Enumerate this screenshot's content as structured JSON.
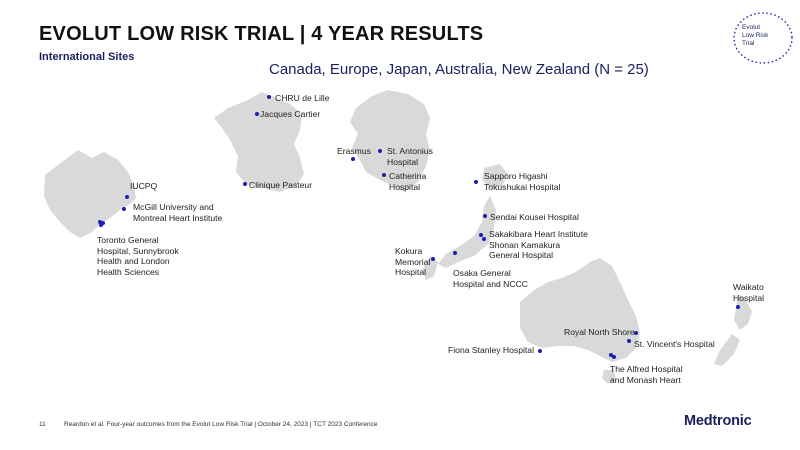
{
  "header": {
    "title": "EVOLUT LOW RISK TRIAL | 4 YEAR RESULTS",
    "subtitle": "International Sites",
    "heading": "Canada, Europe, Japan, Australia, New Zealand (N = 25)"
  },
  "badge": {
    "line1": "Evolut",
    "line2": "Low Risk",
    "line3": "Trial"
  },
  "sites": {
    "iucpq": "IUCPQ",
    "mcgill": "McGill University and\nMontreal Heart Institute",
    "toronto": "Toronto General\nHospital, Sunnybrook\nHealth and London\nHealth Sciences",
    "chru_lille": "CHRU de Lille",
    "jacques_cartier": "Jacques Cartier",
    "clinique_pasteur": "Clinique Pasteur",
    "erasmus": "Erasmus",
    "st_antonius": "St. Antonius\nHospital",
    "catherina": "Catherina\nHospital",
    "sapporo": "Sapporo Higashi\nTokushukai Hospital",
    "sendai": "Sendai Kousei Hospital",
    "sakakibara": "Sakakibara Heart Institute\nShonan Kamakura\nGeneral Hospital",
    "kokura": "Kokura\nMemorial\nHospital",
    "osaka": "Osaka General\nHospital and NCCC",
    "waikato": "Waikato\nHospital",
    "royal_north_shore": "Royal North Shore",
    "st_vincents": "St. Vincent's Hospital",
    "fiona_stanley": "Fiona Stanley Hospital",
    "alfred": "The Alfred Hospital\nand Monash Heart"
  },
  "footer": {
    "page": "11",
    "citation": "Reardon et al. Four-year outcomes from the Evolut Low Risk Trial  |  October 24, 2023  |  TCT 2023 Conference",
    "brand": "Medtronic"
  },
  "colors": {
    "land": "#d9d9d9",
    "marker": "#1a1fb0",
    "brand": "#1a1f5e"
  }
}
